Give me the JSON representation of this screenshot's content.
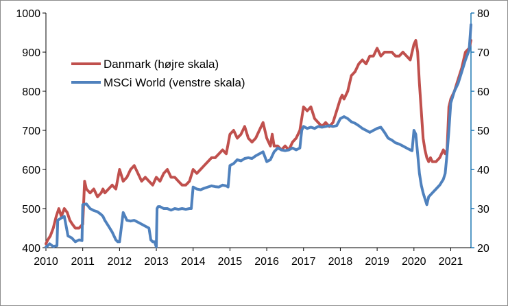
{
  "chart_data": {
    "type": "line",
    "title": "",
    "xlabel": "",
    "ylabel_left": "",
    "ylabel_right": "",
    "x_ticks": [
      "2010",
      "2011",
      "2012",
      "2013",
      "2014",
      "2015",
      "2016",
      "2017",
      "2018",
      "2019",
      "2020",
      "2021"
    ],
    "x_range": [
      2010.0,
      2021.55
    ],
    "y_left": {
      "ticks": [
        "400",
        "500",
        "600",
        "700",
        "800",
        "900",
        "1000"
      ],
      "range": [
        400,
        1000
      ]
    },
    "y_right": {
      "ticks": [
        "20",
        "30",
        "40",
        "50",
        "60",
        "70",
        "80"
      ],
      "range": [
        20,
        80
      ]
    },
    "grid": "none",
    "legend_position": "top-left",
    "colors": {
      "danmark": "#c0504d",
      "msci": "#4f81bd",
      "right_axis": "#1f78b4"
    },
    "series": [
      {
        "name": "Danmark (højre skala)",
        "axis": "right",
        "x": [
          2010.0,
          2010.05,
          2010.12,
          2010.2,
          2010.28,
          2010.35,
          2010.42,
          2010.5,
          2010.58,
          2010.65,
          2010.72,
          2010.8,
          2010.9,
          2011.0,
          2011.05,
          2011.1,
          2011.2,
          2011.3,
          2011.4,
          2011.5,
          2011.55,
          2011.6,
          2011.7,
          2011.8,
          2011.9,
          2012.0,
          2012.1,
          2012.2,
          2012.3,
          2012.4,
          2012.5,
          2012.6,
          2012.7,
          2012.8,
          2012.9,
          2013.0,
          2013.1,
          2013.2,
          2013.3,
          2013.4,
          2013.5,
          2013.6,
          2013.7,
          2013.8,
          2013.9,
          2014.0,
          2014.1,
          2014.2,
          2014.3,
          2014.4,
          2014.5,
          2014.6,
          2014.7,
          2014.8,
          2014.9,
          2015.0,
          2015.1,
          2015.2,
          2015.3,
          2015.4,
          2015.5,
          2015.6,
          2015.7,
          2015.8,
          2015.9,
          2016.0,
          2016.1,
          2016.15,
          2016.2,
          2016.3,
          2016.4,
          2016.5,
          2016.6,
          2016.7,
          2016.8,
          2016.9,
          2017.0,
          2017.1,
          2017.2,
          2017.3,
          2017.4,
          2017.5,
          2017.6,
          2017.7,
          2017.8,
          2017.9,
          2018.0,
          2018.05,
          2018.1,
          2018.2,
          2018.3,
          2018.4,
          2018.5,
          2018.6,
          2018.7,
          2018.8,
          2018.9,
          2019.0,
          2019.05,
          2019.1,
          2019.2,
          2019.3,
          2019.4,
          2019.5,
          2019.6,
          2019.7,
          2019.8,
          2019.9,
          2020.0,
          2020.05,
          2020.1,
          2020.15,
          2020.2,
          2020.25,
          2020.3,
          2020.35,
          2020.4,
          2020.45,
          2020.5,
          2020.6,
          2020.7,
          2020.8,
          2020.85,
          2020.9,
          2020.95,
          2021.0,
          2021.1,
          2021.2,
          2021.3,
          2021.4,
          2021.5,
          2021.55
        ],
        "values": [
          21,
          22,
          23,
          25,
          28,
          30,
          28,
          30,
          29,
          27,
          26,
          25,
          25,
          26,
          37,
          35,
          34,
          35,
          33,
          34,
          35,
          34,
          35,
          36,
          35,
          40,
          37,
          38,
          40,
          41,
          39,
          37,
          38,
          37,
          36,
          38,
          37,
          39,
          40,
          38,
          38,
          37,
          36,
          36,
          37,
          40,
          39,
          40,
          41,
          42,
          43,
          43,
          44,
          45,
          44,
          49,
          50,
          48,
          49,
          51,
          48,
          47,
          48,
          50,
          52,
          48,
          46,
          49,
          46,
          46,
          45,
          46,
          45,
          47,
          48,
          50,
          56,
          55,
          56,
          53,
          52,
          51,
          52,
          51,
          52,
          55,
          58,
          59,
          58,
          60,
          64,
          65,
          67,
          68,
          67,
          69,
          69,
          71,
          70,
          69,
          70,
          70,
          70,
          69,
          69,
          70,
          69,
          68,
          72,
          73,
          70,
          62,
          55,
          48,
          45,
          43,
          42,
          43,
          42,
          42,
          43,
          45,
          44,
          45,
          56,
          58,
          60,
          63,
          66,
          70,
          71,
          73
        ]
      },
      {
        "name": "MSCi World (venstre skala)",
        "axis": "left",
        "x": [
          2010.0,
          2010.05,
          2010.1,
          2010.2,
          2010.3,
          2010.32,
          2010.4,
          2010.5,
          2010.6,
          2010.7,
          2010.8,
          2010.9,
          2010.98,
          2011.0,
          2011.1,
          2011.2,
          2011.3,
          2011.4,
          2011.5,
          2011.55,
          2011.6,
          2011.7,
          2011.8,
          2011.9,
          2011.95,
          2012.0,
          2012.1,
          2012.2,
          2012.3,
          2012.4,
          2012.5,
          2012.6,
          2012.7,
          2012.8,
          2012.85,
          2012.9,
          2012.95,
          2013.0,
          2013.02,
          2013.05,
          2013.1,
          2013.2,
          2013.3,
          2013.4,
          2013.5,
          2013.6,
          2013.7,
          2013.8,
          2013.9,
          2013.95,
          2014.0,
          2014.1,
          2014.2,
          2014.3,
          2014.4,
          2014.5,
          2014.6,
          2014.7,
          2014.8,
          2014.9,
          2014.95,
          2015.0,
          2015.1,
          2015.2,
          2015.3,
          2015.4,
          2015.5,
          2015.6,
          2015.7,
          2015.8,
          2015.9,
          2016.0,
          2016.1,
          2016.2,
          2016.3,
          2016.4,
          2016.5,
          2016.6,
          2016.7,
          2016.8,
          2016.9,
          2016.95,
          2017.0,
          2017.1,
          2017.2,
          2017.3,
          2017.4,
          2017.5,
          2017.6,
          2017.7,
          2017.8,
          2017.9,
          2018.0,
          2018.1,
          2018.2,
          2018.3,
          2018.4,
          2018.5,
          2018.6,
          2018.7,
          2018.8,
          2018.9,
          2019.0,
          2019.1,
          2019.2,
          2019.3,
          2019.4,
          2019.5,
          2019.6,
          2019.7,
          2019.8,
          2019.9,
          2019.95,
          2020.0,
          2020.05,
          2020.1,
          2020.15,
          2020.2,
          2020.25,
          2020.3,
          2020.35,
          2020.4,
          2020.5,
          2020.6,
          2020.7,
          2020.8,
          2020.85,
          2020.9,
          2020.95,
          2021.0,
          2021.1,
          2021.2,
          2021.3,
          2021.4,
          2021.5,
          2021.55
        ],
        "values": [
          402,
          405,
          410,
          403,
          405,
          470,
          475,
          480,
          430,
          425,
          415,
          420,
          418,
          510,
          512,
          500,
          495,
          492,
          485,
          480,
          470,
          455,
          440,
          420,
          415,
          415,
          490,
          470,
          468,
          470,
          465,
          460,
          455,
          450,
          420,
          415,
          415,
          402,
          500,
          505,
          505,
          500,
          500,
          496,
          500,
          498,
          500,
          498,
          500,
          500,
          555,
          550,
          548,
          552,
          555,
          558,
          556,
          555,
          560,
          558,
          555,
          610,
          615,
          625,
          622,
          628,
          630,
          628,
          635,
          640,
          645,
          620,
          625,
          645,
          655,
          650,
          648,
          650,
          655,
          650,
          655,
          700,
          710,
          705,
          708,
          705,
          710,
          708,
          710,
          712,
          710,
          712,
          730,
          735,
          730,
          722,
          718,
          712,
          705,
          700,
          695,
          700,
          705,
          708,
          695,
          680,
          675,
          668,
          665,
          660,
          655,
          650,
          648,
          700,
          690,
          640,
          590,
          560,
          540,
          525,
          510,
          530,
          540,
          550,
          560,
          575,
          590,
          640,
          700,
          770,
          800,
          820,
          850,
          880,
          905,
          970
        ]
      }
    ]
  }
}
